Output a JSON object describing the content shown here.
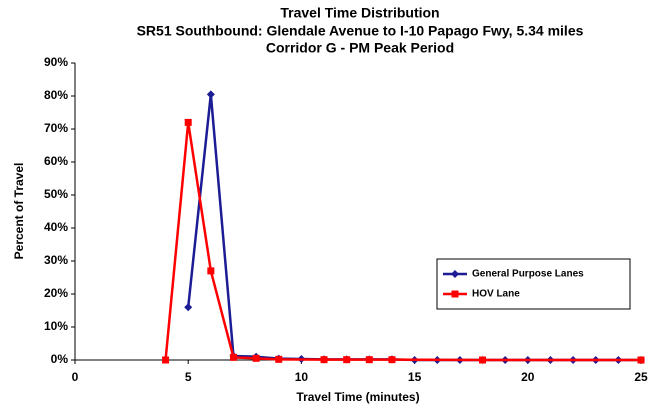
{
  "chart_data": {
    "type": "line",
    "title": "Travel Time Distribution",
    "subtitle": [
      "SR51 Southbound:  Glendale Avenue to I-10 Papago Fwy, 5.34 miles",
      "Corridor G  -  PM Peak Period"
    ],
    "x_label": "Travel Time (minutes)",
    "y_label": "Percent of Travel",
    "xlim": [
      0,
      25
    ],
    "xticks": [
      0,
      5,
      10,
      15,
      20,
      25
    ],
    "ylim": [
      0,
      90
    ],
    "yticks": [
      {
        "value": 0,
        "label": "0%"
      },
      {
        "value": 10,
        "label": "10%"
      },
      {
        "value": 20,
        "label": "20%"
      },
      {
        "value": 30,
        "label": "30%"
      },
      {
        "value": 40,
        "label": "40%"
      },
      {
        "value": 50,
        "label": "50%"
      },
      {
        "value": 60,
        "label": "60%"
      },
      {
        "value": 70,
        "label": "70%"
      },
      {
        "value": 80,
        "label": "80%"
      },
      {
        "value": 90,
        "label": "90%"
      }
    ],
    "legend": "right",
    "series": [
      {
        "name": "General Purpose Lanes",
        "color": "#1c1c94",
        "marker": "diamond",
        "x": [
          5,
          6,
          7,
          8,
          9,
          10,
          11,
          12,
          13,
          14,
          15,
          16,
          17,
          18,
          19,
          20,
          21,
          22,
          23,
          24,
          25
        ],
        "values": [
          16,
          80.5,
          1.2,
          1,
          0.4,
          0.3,
          0.2,
          0.2,
          0.2,
          0.2,
          0,
          0,
          0,
          0,
          0,
          0,
          0,
          0,
          0,
          0,
          0
        ]
      },
      {
        "name": "HOV Lane",
        "color": "#ff0000",
        "marker": "square",
        "x": [
          4,
          5,
          6,
          7,
          8,
          9,
          11,
          12,
          13,
          14,
          18,
          25
        ],
        "values": [
          0,
          72,
          27,
          0.8,
          0.5,
          0.2,
          0.1,
          0.1,
          0.1,
          0.1,
          0,
          0
        ]
      }
    ]
  }
}
